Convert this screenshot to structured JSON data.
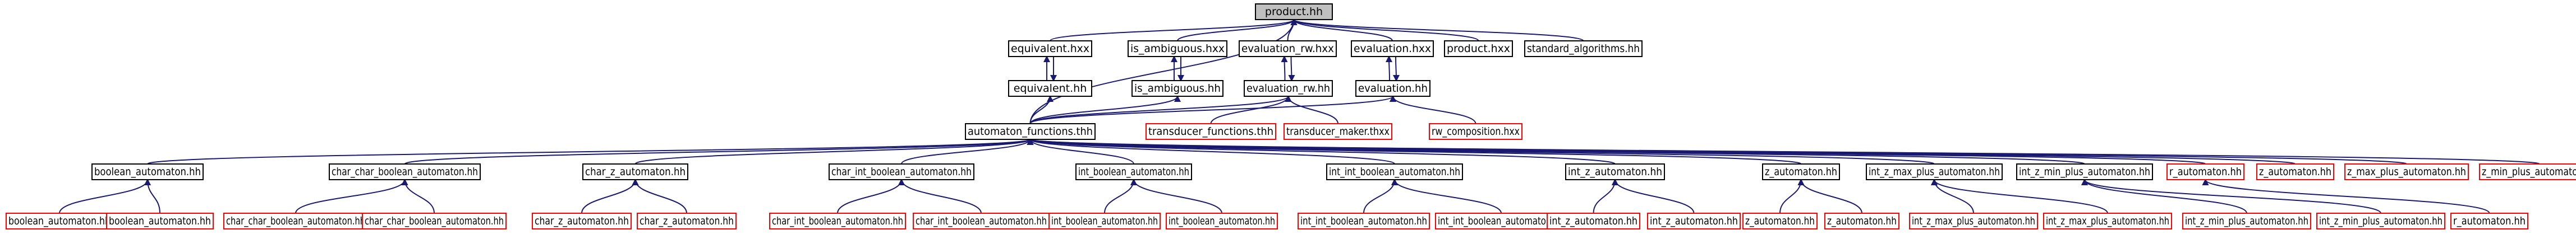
{
  "colors": {
    "background": "#ffffff",
    "edge": "#191970",
    "arrowhead": "#191970",
    "default_border": "#000000",
    "external_border": "#ff0000",
    "root_fill": "#bfbfbf",
    "text": "#000000"
  },
  "nodes": [
    {
      "id": "product_hh",
      "label": "product.hh",
      "style": "root"
    },
    {
      "id": "equivalent_hxx",
      "label": "equivalent.hxx",
      "style": "default"
    },
    {
      "id": "is_ambiguous_hxx",
      "label": "is_ambiguous.hxx",
      "style": "default"
    },
    {
      "id": "evaluation_rw_hxx",
      "label": "evaluation_rw.hxx",
      "style": "default"
    },
    {
      "id": "evaluation_hxx",
      "label": "evaluation.hxx",
      "style": "default"
    },
    {
      "id": "product_hxx",
      "label": "product.hxx",
      "style": "default"
    },
    {
      "id": "standard_algorithms_hh",
      "label": "standard_algorithms.hh",
      "style": "default"
    },
    {
      "id": "equivalent_hh",
      "label": "equivalent.hh",
      "style": "default"
    },
    {
      "id": "is_ambiguous_hh",
      "label": "is_ambiguous.hh",
      "style": "default"
    },
    {
      "id": "evaluation_rw_hh",
      "label": "evaluation_rw.hh",
      "style": "default"
    },
    {
      "id": "evaluation_hh",
      "label": "evaluation.hh",
      "style": "default"
    },
    {
      "id": "automaton_functions_thh",
      "label": "automaton_functions.thh",
      "style": "default"
    },
    {
      "id": "transducer_functions_thh",
      "label": "transducer_functions.thh",
      "style": "external"
    },
    {
      "id": "transducer_maker_thxx",
      "label": "transducer_maker.thxx",
      "style": "external"
    },
    {
      "id": "rw_composition_hxx",
      "label": "rw_composition.hxx",
      "style": "external"
    },
    {
      "id": "boolean_automaton_hh",
      "label": "boolean_automaton.hh",
      "style": "default"
    },
    {
      "id": "char_char_boolean_automaton_hh",
      "label": "char_char_boolean_automaton.hh",
      "style": "default"
    },
    {
      "id": "char_z_automaton_hh",
      "label": "char_z_automaton.hh",
      "style": "default"
    },
    {
      "id": "char_int_boolean_automaton_hh",
      "label": "char_int_boolean_automaton.hh",
      "style": "default"
    },
    {
      "id": "int_boolean_automaton_hh",
      "label": "int_boolean_automaton.hh",
      "style": "default"
    },
    {
      "id": "int_int_boolean_automaton_hh",
      "label": "int_int_boolean_automaton.hh",
      "style": "default"
    },
    {
      "id": "int_z_automaton_hh",
      "label": "int_z_automaton.hh",
      "style": "default"
    },
    {
      "id": "z_automaton_hh",
      "label": "z_automaton.hh",
      "style": "default"
    },
    {
      "id": "int_z_max_plus_automaton_hh",
      "label": "int_z_max_plus_automaton.hh",
      "style": "default"
    },
    {
      "id": "int_z_min_plus_automaton_hh",
      "label": "int_z_min_plus_automaton.hh",
      "style": "default"
    },
    {
      "id": "r_automaton_hh",
      "label": "r_automaton.hh",
      "style": "external"
    },
    {
      "id": "z_automaton_hh_ext",
      "label": "z_automaton.hh",
      "style": "external"
    },
    {
      "id": "z_max_plus_automaton_hh",
      "label": "z_max_plus_automaton.hh",
      "style": "external"
    },
    {
      "id": "z_min_plus_automaton_hh",
      "label": "z_min_plus_automaton.hh",
      "style": "external"
    },
    {
      "id": "b1",
      "label": "boolean_automaton.hh",
      "style": "external"
    },
    {
      "id": "b2",
      "label": "boolean_automaton.hh",
      "style": "external"
    },
    {
      "id": "ccb1",
      "label": "char_char_boolean_automaton.hh",
      "style": "external"
    },
    {
      "id": "ccb2",
      "label": "char_char_boolean_automaton.hh",
      "style": "external"
    },
    {
      "id": "cz1",
      "label": "char_z_automaton.hh",
      "style": "external"
    },
    {
      "id": "cz2",
      "label": "char_z_automaton.hh",
      "style": "external"
    },
    {
      "id": "cib1",
      "label": "char_int_boolean_automaton.hh",
      "style": "external"
    },
    {
      "id": "cib2",
      "label": "char_int_boolean_automaton.hh",
      "style": "external"
    },
    {
      "id": "ib1",
      "label": "int_boolean_automaton.hh",
      "style": "external"
    },
    {
      "id": "ib2",
      "label": "int_boolean_automaton.hh",
      "style": "external"
    },
    {
      "id": "iib1",
      "label": "int_int_boolean_automaton.hh",
      "style": "external"
    },
    {
      "id": "iib2",
      "label": "int_int_boolean_automaton.hh",
      "style": "external"
    },
    {
      "id": "iz1",
      "label": "int_z_automaton.hh",
      "style": "external"
    },
    {
      "id": "iz2",
      "label": "int_z_automaton.hh",
      "style": "external"
    },
    {
      "id": "z1",
      "label": "z_automaton.hh",
      "style": "external"
    },
    {
      "id": "z2",
      "label": "z_automaton.hh",
      "style": "external"
    },
    {
      "id": "izmax1",
      "label": "int_z_max_plus_automaton.hh",
      "style": "external"
    },
    {
      "id": "izmax2",
      "label": "int_z_max_plus_automaton.hh",
      "style": "external"
    },
    {
      "id": "izmin1",
      "label": "int_z_min_plus_automaton.hh",
      "style": "external"
    },
    {
      "id": "izmin2",
      "label": "int_z_min_plus_automaton.hh",
      "style": "external"
    },
    {
      "id": "r1",
      "label": "r_automaton.hh",
      "style": "external"
    }
  ],
  "edges": [
    [
      "equivalent_hxx",
      "product_hh"
    ],
    [
      "is_ambiguous_hxx",
      "product_hh"
    ],
    [
      "evaluation_rw_hxx",
      "product_hh"
    ],
    [
      "evaluation_hxx",
      "product_hh"
    ],
    [
      "product_hxx",
      "product_hh"
    ],
    [
      "standard_algorithms_hh",
      "product_hh"
    ],
    [
      "automaton_functions_thh",
      "product_hh"
    ],
    [
      "equivalent_hh",
      "equivalent_hxx"
    ],
    [
      "equivalent_hxx",
      "equivalent_hh"
    ],
    [
      "is_ambiguous_hh",
      "is_ambiguous_hxx"
    ],
    [
      "is_ambiguous_hxx",
      "is_ambiguous_hh"
    ],
    [
      "evaluation_rw_hh",
      "evaluation_rw_hxx"
    ],
    [
      "evaluation_rw_hxx",
      "evaluation_rw_hh"
    ],
    [
      "evaluation_hh",
      "evaluation_hxx"
    ],
    [
      "evaluation_hxx",
      "evaluation_hh"
    ],
    [
      "automaton_functions_thh",
      "equivalent_hh"
    ],
    [
      "automaton_functions_thh",
      "is_ambiguous_hh"
    ],
    [
      "automaton_functions_thh",
      "evaluation_rw_hh"
    ],
    [
      "automaton_functions_thh",
      "evaluation_hh"
    ],
    [
      "transducer_functions_thh",
      "evaluation_rw_hh"
    ],
    [
      "transducer_maker_thxx",
      "evaluation_rw_hh"
    ],
    [
      "rw_composition_hxx",
      "evaluation_hh"
    ],
    [
      "boolean_automaton_hh",
      "automaton_functions_thh"
    ],
    [
      "char_char_boolean_automaton_hh",
      "automaton_functions_thh"
    ],
    [
      "char_z_automaton_hh",
      "automaton_functions_thh"
    ],
    [
      "char_int_boolean_automaton_hh",
      "automaton_functions_thh"
    ],
    [
      "int_boolean_automaton_hh",
      "automaton_functions_thh"
    ],
    [
      "int_int_boolean_automaton_hh",
      "automaton_functions_thh"
    ],
    [
      "int_z_automaton_hh",
      "automaton_functions_thh"
    ],
    [
      "z_automaton_hh",
      "automaton_functions_thh"
    ],
    [
      "int_z_max_plus_automaton_hh",
      "automaton_functions_thh"
    ],
    [
      "int_z_min_plus_automaton_hh",
      "automaton_functions_thh"
    ],
    [
      "r_automaton_hh",
      "automaton_functions_thh"
    ],
    [
      "z_automaton_hh_ext",
      "automaton_functions_thh"
    ],
    [
      "z_max_plus_automaton_hh",
      "automaton_functions_thh"
    ],
    [
      "z_min_plus_automaton_hh",
      "automaton_functions_thh"
    ],
    [
      "b1",
      "boolean_automaton_hh"
    ],
    [
      "b2",
      "boolean_automaton_hh"
    ],
    [
      "ccb1",
      "char_char_boolean_automaton_hh"
    ],
    [
      "ccb2",
      "char_char_boolean_automaton_hh"
    ],
    [
      "cz1",
      "char_z_automaton_hh"
    ],
    [
      "cz2",
      "char_z_automaton_hh"
    ],
    [
      "cib1",
      "char_int_boolean_automaton_hh"
    ],
    [
      "cib2",
      "char_int_boolean_automaton_hh"
    ],
    [
      "ib1",
      "int_boolean_automaton_hh"
    ],
    [
      "ib2",
      "int_boolean_automaton_hh"
    ],
    [
      "iib1",
      "int_int_boolean_automaton_hh"
    ],
    [
      "iib2",
      "int_int_boolean_automaton_hh"
    ],
    [
      "iz1",
      "int_z_automaton_hh"
    ],
    [
      "iz2",
      "int_z_automaton_hh"
    ],
    [
      "z1",
      "z_automaton_hh"
    ],
    [
      "z2",
      "z_automaton_hh"
    ],
    [
      "izmax1",
      "int_z_max_plus_automaton_hh"
    ],
    [
      "izmax2",
      "int_z_max_plus_automaton_hh"
    ],
    [
      "izmin1",
      "int_z_min_plus_automaton_hh"
    ],
    [
      "izmin2",
      "int_z_min_plus_automaton_hh"
    ],
    [
      "r1",
      "r_automaton_hh"
    ]
  ]
}
